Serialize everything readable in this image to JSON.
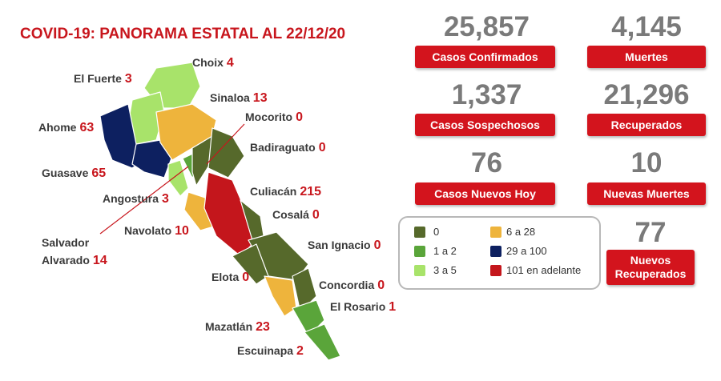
{
  "title": "COVID-19: PANORAMA ESTATAL AL 22/12/20",
  "municipalities": [
    {
      "name": "Choix",
      "value": 4
    },
    {
      "name": "El Fuerte",
      "value": 3
    },
    {
      "name": "Sinaloa",
      "value": 13
    },
    {
      "name": "Mocorito",
      "value": 0
    },
    {
      "name": "Ahome",
      "value": 63
    },
    {
      "name": "Badiraguato",
      "value": 0
    },
    {
      "name": "Guasave",
      "value": 65
    },
    {
      "name": "Culiacán",
      "value": 215
    },
    {
      "name": "Angostura",
      "value": 3
    },
    {
      "name": "Cosalá",
      "value": 0
    },
    {
      "name": "Navolato",
      "value": 10
    },
    {
      "name": "Salvador Alvarado",
      "value": 14
    },
    {
      "name": "San Ignacio",
      "value": 0
    },
    {
      "name": "Elota",
      "value": 0
    },
    {
      "name": "Concordia",
      "value": 0
    },
    {
      "name": "El Rosario",
      "value": 1
    },
    {
      "name": "Mazatlán",
      "value": 23
    },
    {
      "name": "Escuinapa",
      "value": 2
    }
  ],
  "stats": [
    {
      "value": "25,857",
      "label": "Casos Confirmados"
    },
    {
      "value": "4,145",
      "label": "Muertes"
    },
    {
      "value": "1,337",
      "label": "Casos Sospechosos"
    },
    {
      "value": "21,296",
      "label": "Recuperados"
    },
    {
      "value": "76",
      "label": "Casos Nuevos Hoy"
    },
    {
      "value": "10",
      "label": "Nuevas Muertes"
    },
    {
      "value": "77",
      "label": "Nuevos Recuperados"
    }
  ],
  "legend": [
    {
      "label": "0",
      "color": "#56692b"
    },
    {
      "label": "1 a 2",
      "color": "#5aa53a"
    },
    {
      "label": "3 a 5",
      "color": "#a8e36a"
    },
    {
      "label": "6 a 28",
      "color": "#eeb43c"
    },
    {
      "label": "29 a 100",
      "color": "#0d2060"
    },
    {
      "label": "101 en adelante",
      "color": "#c4161c"
    }
  ]
}
